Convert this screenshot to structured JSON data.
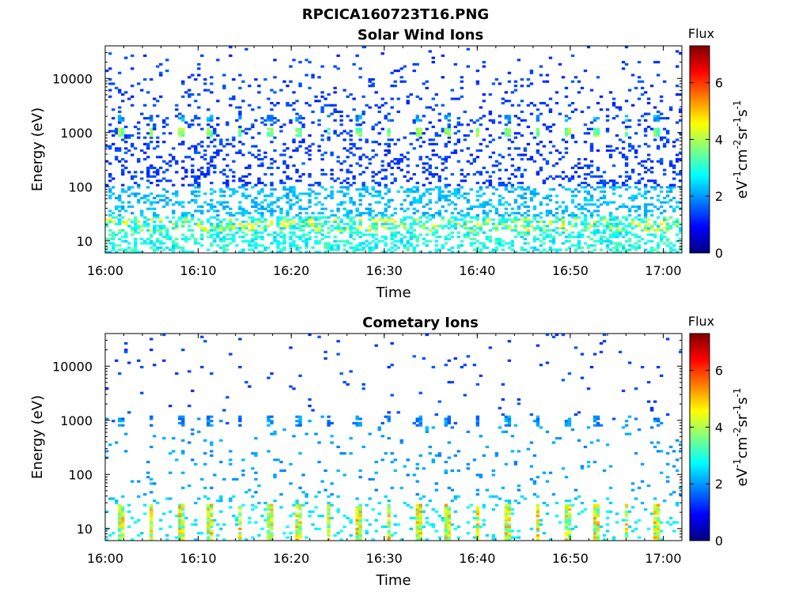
{
  "figure": {
    "title": "RPCICA160723T16.PNG"
  },
  "colors": {
    "colormap": [
      "#00007f",
      "#0000ff",
      "#007fff",
      "#00ffff",
      "#7fff7f",
      "#ffff00",
      "#ff7f00",
      "#ff0000",
      "#7f0000"
    ]
  },
  "chart_data": [
    {
      "type": "heatmap",
      "title": "Solar Wind Ions",
      "xlabel": "Time",
      "ylabel": "Energy (eV)",
      "yscale": "log",
      "x_ticks": [
        "16:00",
        "16:10",
        "16:20",
        "16:30",
        "16:40",
        "16:50",
        "17:00"
      ],
      "y_ticks": [
        "10",
        "100",
        "1000",
        "10000"
      ],
      "x_range": [
        "16:00",
        "17:02"
      ],
      "y_range": [
        6,
        40000
      ],
      "colorbar": {
        "label": "Flux",
        "unit_label": "eV-1cm-2sr-1s-1",
        "ticks": [
          "0",
          "2",
          "4",
          "6"
        ],
        "range": [
          0,
          7.3
        ]
      },
      "features": [
        {
          "energy_eV": 1000,
          "flux_max": 4.2,
          "description": "periodic band"
        },
        {
          "energy_eV": 1800,
          "flux_max": 3.0,
          "description": "periodic band"
        },
        {
          "energy_eV": 20,
          "flux_max": 4.5,
          "description": "low-energy band"
        }
      ],
      "band_period_minutes": 3.2
    },
    {
      "type": "heatmap",
      "title": "Cometary Ions",
      "xlabel": "Time",
      "ylabel": "Energy (eV)",
      "yscale": "log",
      "x_ticks": [
        "16:00",
        "16:10",
        "16:20",
        "16:30",
        "16:40",
        "16:50",
        "17:00"
      ],
      "y_ticks": [
        "10",
        "100",
        "1000",
        "10000"
      ],
      "x_range": [
        "16:00",
        "17:02"
      ],
      "y_range": [
        6,
        40000
      ],
      "colorbar": {
        "label": "Flux",
        "unit_label": "eV-1cm-2sr-1s-1",
        "ticks": [
          "0",
          "2",
          "4",
          "6"
        ],
        "range": [
          0,
          7.3
        ]
      },
      "features": [
        {
          "energy_eV": 1000,
          "flux_max": 2.2,
          "description": "periodic band"
        },
        {
          "energy_eV": 15,
          "flux_max": 5.5,
          "description": "periodic low-energy band"
        }
      ],
      "band_period_minutes": 3.2
    }
  ]
}
